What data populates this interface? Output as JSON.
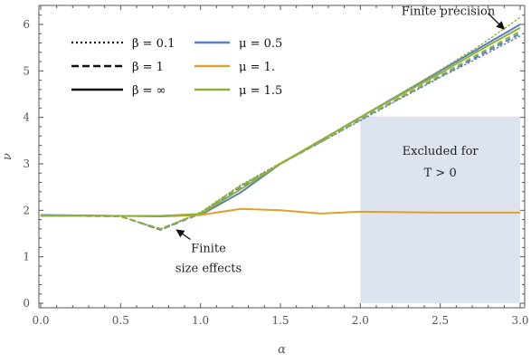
{
  "chart_data": {
    "type": "line",
    "title": "",
    "xlabel": "α",
    "ylabel": "ν",
    "xlim": [
      0,
      3
    ],
    "ylim": [
      0,
      6.35
    ],
    "xticks": [
      0.0,
      0.5,
      1.0,
      1.5,
      2.0,
      2.5,
      3.0
    ],
    "xtick_labels": [
      "0.0",
      "0.5",
      "1.0",
      "1.5",
      "2.0",
      "2.5",
      "3.0"
    ],
    "yticks": [
      0,
      1,
      2,
      3,
      4,
      5,
      6
    ],
    "ytick_labels": [
      "0",
      "1",
      "2",
      "3",
      "4",
      "5",
      "6"
    ],
    "grid": false,
    "colors": {
      "mu_0_5": "#5a7fbe",
      "mu_1": "#e0a030",
      "mu_1_5": "#8fb03a",
      "region": "#dde3ef",
      "axis": "#555555"
    },
    "legend": {
      "placement": "top-left",
      "linestyles": [
        {
          "label": "β = 0.1",
          "dash": "dotted"
        },
        {
          "label": "β = 1",
          "dash": "dashed"
        },
        {
          "label": "β = ∞",
          "dash": "solid"
        }
      ],
      "colors": [
        {
          "label": "μ = 0.5",
          "color": "#5a7fbe"
        },
        {
          "label": "μ = 1.",
          "color": "#e0a030"
        },
        {
          "label": "μ = 1.5",
          "color": "#8fb03a"
        }
      ]
    },
    "shaded_region": {
      "x": [
        2.0,
        3.0
      ],
      "y": [
        0,
        4.02
      ],
      "text_lines": [
        "Excluded for",
        "T > 0"
      ],
      "text_at": [
        2.5,
        3.0
      ]
    },
    "annotations": [
      {
        "lines": [
          "Finite precision"
        ],
        "text_at": [
          2.55,
          6.2
        ],
        "arrow_to": [
          2.9,
          5.9
        ]
      },
      {
        "lines": [
          "Finite",
          "size effects"
        ],
        "text_at": [
          1.05,
          1.1
        ],
        "arrow_to": [
          0.85,
          1.58
        ]
      }
    ],
    "series": [
      {
        "color": "#5a7fbe",
        "dash": "solid",
        "x": [
          0,
          0.25,
          0.5,
          0.75,
          1.0,
          1.25,
          1.5,
          1.75,
          2.0,
          2.25,
          2.5,
          2.75,
          3.0
        ],
        "y": [
          1.9,
          1.89,
          1.88,
          1.87,
          1.9,
          2.38,
          3.0,
          3.5,
          4.0,
          4.5,
          5.0,
          5.5,
          6.0
        ]
      },
      {
        "color": "#5a7fbe",
        "dash": "dashed",
        "x": [
          0,
          0.25,
          0.5,
          0.75,
          1.0,
          1.25,
          1.5,
          1.75,
          2.0,
          2.25,
          2.5,
          2.75,
          3.0
        ],
        "y": [
          1.88,
          1.88,
          1.87,
          1.58,
          1.93,
          2.5,
          3.0,
          3.47,
          3.95,
          4.42,
          4.88,
          5.34,
          5.8
        ]
      },
      {
        "color": "#5a7fbe",
        "dash": "dotted",
        "x": [
          0,
          0.25,
          0.5,
          0.75,
          1.0,
          1.25,
          1.5,
          1.75,
          2.0,
          2.25,
          2.5,
          2.75,
          3.0
        ],
        "y": [
          1.88,
          1.88,
          1.87,
          1.58,
          1.95,
          2.52,
          3.0,
          3.46,
          3.93,
          4.4,
          4.86,
          5.3,
          5.75
        ]
      },
      {
        "color": "#e0a030",
        "dash": "solid",
        "x": [
          0,
          0.25,
          0.5,
          0.75,
          1.0,
          1.25,
          1.5,
          1.75,
          2.0,
          2.25,
          2.5,
          2.75,
          3.0
        ],
        "y": [
          1.88,
          1.88,
          1.88,
          1.88,
          1.9,
          2.03,
          2.0,
          1.93,
          1.97,
          1.96,
          1.95,
          1.95,
          1.95
        ]
      },
      {
        "color": "#8fb03a",
        "dash": "solid",
        "x": [
          0,
          0.25,
          0.5,
          0.75,
          1.0,
          1.25,
          1.5,
          1.75,
          2.0,
          2.25,
          2.5,
          2.75,
          3.0
        ],
        "y": [
          1.89,
          1.89,
          1.88,
          1.88,
          1.92,
          2.45,
          3.0,
          3.5,
          4.0,
          4.48,
          4.95,
          5.45,
          5.93
        ]
      },
      {
        "color": "#8fb03a",
        "dash": "dashed",
        "x": [
          0,
          0.25,
          0.5,
          0.75,
          1.0,
          1.25,
          1.5,
          1.75,
          2.0,
          2.25,
          2.5,
          2.75,
          3.0
        ],
        "y": [
          1.88,
          1.88,
          1.87,
          1.6,
          1.94,
          2.52,
          3.0,
          3.47,
          3.96,
          4.43,
          4.9,
          5.38,
          5.85
        ]
      },
      {
        "color": "#8fb03a",
        "dash": "dotted",
        "x": [
          0,
          0.25,
          0.5,
          0.75,
          1.0,
          1.25,
          1.5,
          1.75,
          2.0,
          2.25,
          2.5,
          2.75,
          3.0
        ],
        "y": [
          1.88,
          1.88,
          1.87,
          1.6,
          1.96,
          2.54,
          3.02,
          3.5,
          4.0,
          4.5,
          5.02,
          5.55,
          6.15
        ]
      }
    ]
  }
}
